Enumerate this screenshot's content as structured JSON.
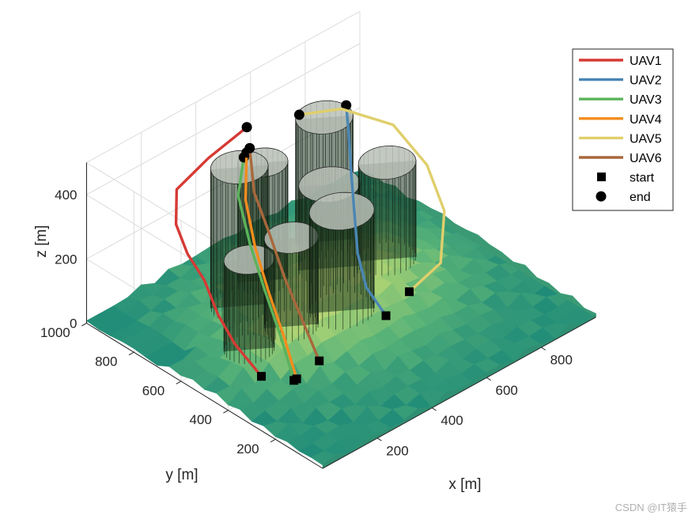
{
  "chart_data": {
    "type": "scatter",
    "subtype": "3d-line",
    "xlabel": "x [m]",
    "ylabel": "y [m]",
    "zlabel": "z [m]",
    "xlim": [
      0,
      1000
    ],
    "ylim": [
      0,
      1000
    ],
    "zlim": [
      0,
      500
    ],
    "xticks": [
      200,
      400,
      600,
      800
    ],
    "yticks": [
      200,
      400,
      600,
      800,
      1000
    ],
    "zticks": [
      0,
      200,
      400
    ],
    "grid": true,
    "legend_position": "top-right",
    "legend_start": "start",
    "legend_end": "end",
    "colors": {
      "terrain_low": "#1e8a78",
      "terrain_high": "#e6e27e",
      "obstacle": "#1f3a22",
      "obstacle_top": "#b9c0b6"
    },
    "obstacles": [
      {
        "x": 300,
        "y": 700,
        "r": 80,
        "h": 480
      },
      {
        "x": 420,
        "y": 740,
        "r": 70,
        "h": 420
      },
      {
        "x": 300,
        "y": 480,
        "r": 75,
        "h": 360
      },
      {
        "x": 560,
        "y": 620,
        "r": 85,
        "h": 340
      },
      {
        "x": 450,
        "y": 440,
        "r": 90,
        "h": 390
      },
      {
        "x": 680,
        "y": 780,
        "r": 80,
        "h": 420
      },
      {
        "x": 720,
        "y": 560,
        "r": 80,
        "h": 360
      },
      {
        "x": 180,
        "y": 520,
        "r": 70,
        "h": 330
      }
    ],
    "series": [
      {
        "name": "UAV1",
        "color": "#d63a35",
        "points": [
          [
            130,
            410,
            40
          ],
          [
            110,
            500,
            110
          ],
          [
            100,
            560,
            180
          ],
          [
            120,
            640,
            240
          ],
          [
            110,
            700,
            300
          ],
          [
            120,
            760,
            360
          ],
          [
            200,
            850,
            390
          ],
          [
            360,
            900,
            390
          ],
          [
            500,
            900,
            420
          ]
        ]
      },
      {
        "name": "UAV2",
        "color": "#4a86b4",
        "points": [
          [
            560,
            380,
            40
          ],
          [
            540,
            440,
            110
          ],
          [
            560,
            500,
            180
          ],
          [
            600,
            560,
            260
          ],
          [
            640,
            620,
            340
          ],
          [
            700,
            700,
            400
          ],
          [
            760,
            780,
            420
          ]
        ]
      },
      {
        "name": "UAV3",
        "color": "#5bb35b",
        "points": [
          [
            180,
            330,
            40
          ],
          [
            210,
            420,
            120
          ],
          [
            240,
            520,
            200
          ],
          [
            270,
            620,
            290
          ],
          [
            330,
            740,
            360
          ],
          [
            420,
            820,
            400
          ]
        ]
      },
      {
        "name": "UAV4",
        "color": "#f28c1e",
        "points": [
          [
            190,
            330,
            40
          ],
          [
            220,
            420,
            120
          ],
          [
            250,
            520,
            200
          ],
          [
            280,
            610,
            280
          ],
          [
            340,
            720,
            350
          ],
          [
            430,
            820,
            410
          ]
        ]
      },
      {
        "name": "UAV5",
        "color": "#e0cf6c",
        "points": [
          [
            680,
            420,
            40
          ],
          [
            760,
            380,
            110
          ],
          [
            860,
            480,
            180
          ],
          [
            900,
            600,
            250
          ],
          [
            880,
            720,
            330
          ],
          [
            760,
            800,
            400
          ],
          [
            640,
            840,
            420
          ]
        ]
      },
      {
        "name": "UAV6",
        "color": "#a8683c",
        "points": [
          [
            290,
            350,
            40
          ],
          [
            300,
            430,
            120
          ],
          [
            320,
            530,
            200
          ],
          [
            350,
            630,
            280
          ],
          [
            380,
            730,
            350
          ],
          [
            450,
            830,
            410
          ]
        ]
      }
    ]
  },
  "watermark": "CSDN @IT猿手"
}
